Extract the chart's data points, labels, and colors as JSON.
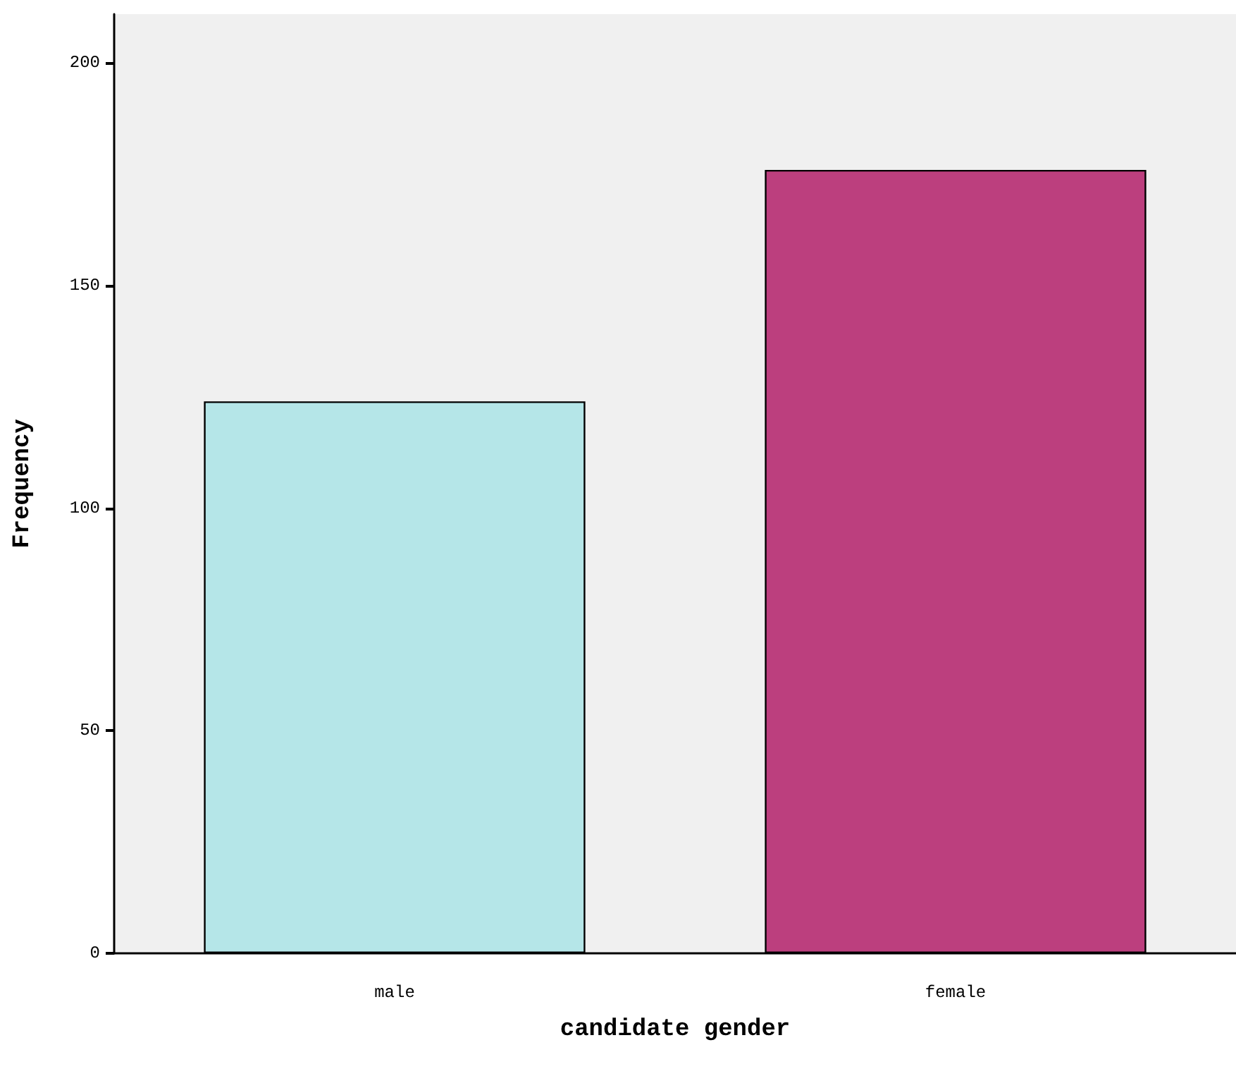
{
  "chart_data": {
    "type": "bar",
    "xlabel": "candidate gender",
    "ylabel": "Frequency",
    "categories": [
      "male",
      "female"
    ],
    "values": [
      124,
      176
    ],
    "colors": [
      "#b5e6e8",
      "#bc3f7e"
    ],
    "ylim": [
      0,
      211
    ],
    "yticks": [
      0,
      50,
      100,
      150,
      200
    ],
    "grid": false
  }
}
